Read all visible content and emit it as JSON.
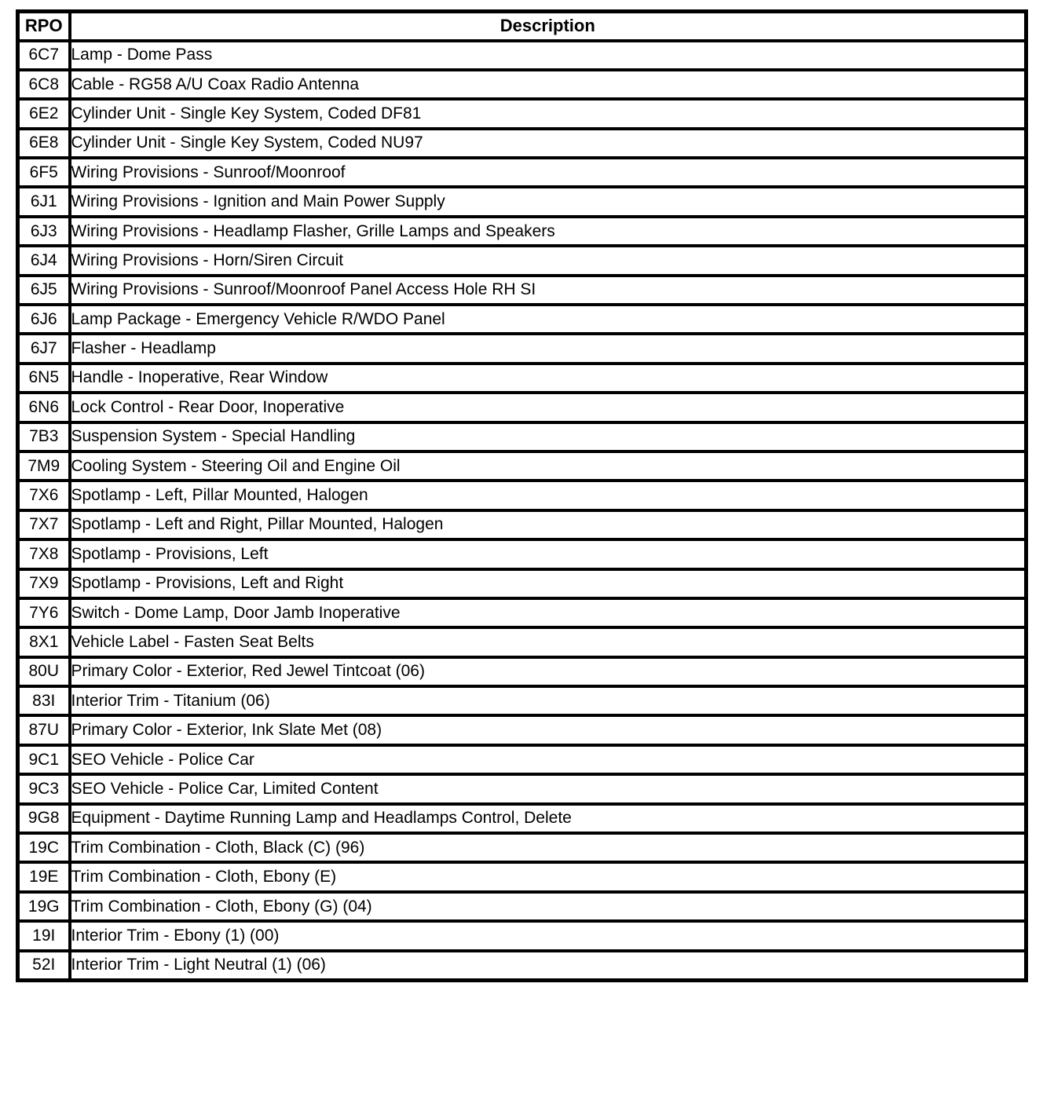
{
  "colors": {
    "border": "#000000",
    "text": "#000000",
    "background": "#ffffff"
  },
  "table": {
    "header": {
      "rpo": "RPO",
      "description": "Description"
    },
    "rows": [
      {
        "code": "6C7",
        "description": "Lamp - Dome Pass"
      },
      {
        "code": "6C8",
        "description": "Cable - RG58 A/U Coax Radio Antenna"
      },
      {
        "code": "6E2",
        "description": "Cylinder Unit - Single Key System, Coded DF81"
      },
      {
        "code": "6E8",
        "description": "Cylinder Unit - Single Key System, Coded NU97"
      },
      {
        "code": "6F5",
        "description": "Wiring Provisions - Sunroof/Moonroof"
      },
      {
        "code": "6J1",
        "description": "Wiring Provisions - Ignition and Main Power Supply"
      },
      {
        "code": "6J3",
        "description": "Wiring Provisions - Headlamp Flasher, Grille Lamps and Speakers"
      },
      {
        "code": "6J4",
        "description": "Wiring Provisions - Horn/Siren Circuit"
      },
      {
        "code": "6J5",
        "description": "Wiring Provisions - Sunroof/Moonroof Panel Access Hole RH SI"
      },
      {
        "code": "6J6",
        "description": "Lamp Package - Emergency Vehicle R/WDO Panel"
      },
      {
        "code": "6J7",
        "description": "Flasher - Headlamp"
      },
      {
        "code": "6N5",
        "description": "Handle - Inoperative, Rear Window"
      },
      {
        "code": "6N6",
        "description": "Lock Control - Rear Door, Inoperative"
      },
      {
        "code": "7B3",
        "description": "Suspension System - Special Handling"
      },
      {
        "code": "7M9",
        "description": "Cooling System - Steering Oil and Engine Oil"
      },
      {
        "code": "7X6",
        "description": "Spotlamp - Left, Pillar Mounted, Halogen"
      },
      {
        "code": "7X7",
        "description": "Spotlamp - Left and Right, Pillar Mounted, Halogen"
      },
      {
        "code": "7X8",
        "description": "Spotlamp - Provisions, Left"
      },
      {
        "code": "7X9",
        "description": "Spotlamp - Provisions, Left and Right"
      },
      {
        "code": "7Y6",
        "description": "Switch - Dome Lamp, Door Jamb Inoperative"
      },
      {
        "code": "8X1",
        "description": "Vehicle Label - Fasten Seat Belts"
      },
      {
        "code": "80U",
        "description": "Primary Color - Exterior, Red Jewel Tintcoat (06)"
      },
      {
        "code": "83I",
        "description": "Interior Trim - Titanium (06)"
      },
      {
        "code": "87U",
        "description": "Primary Color - Exterior, Ink Slate Met (08)"
      },
      {
        "code": "9C1",
        "description": "SEO Vehicle - Police Car"
      },
      {
        "code": "9C3",
        "description": "SEO Vehicle - Police Car, Limited Content"
      },
      {
        "code": "9G8",
        "description": "Equipment - Daytime Running Lamp and Headlamps Control, Delete"
      },
      {
        "code": "19C",
        "description": "Trim Combination - Cloth, Black (C) (96)"
      },
      {
        "code": "19E",
        "description": "Trim Combination - Cloth, Ebony (E)"
      },
      {
        "code": "19G",
        "description": "Trim Combination - Cloth, Ebony (G) (04)"
      },
      {
        "code": "19I",
        "description": "Interior Trim - Ebony (1) (00)"
      },
      {
        "code": "52I",
        "description": "Interior Trim - Light Neutral (1) (06)"
      }
    ]
  }
}
